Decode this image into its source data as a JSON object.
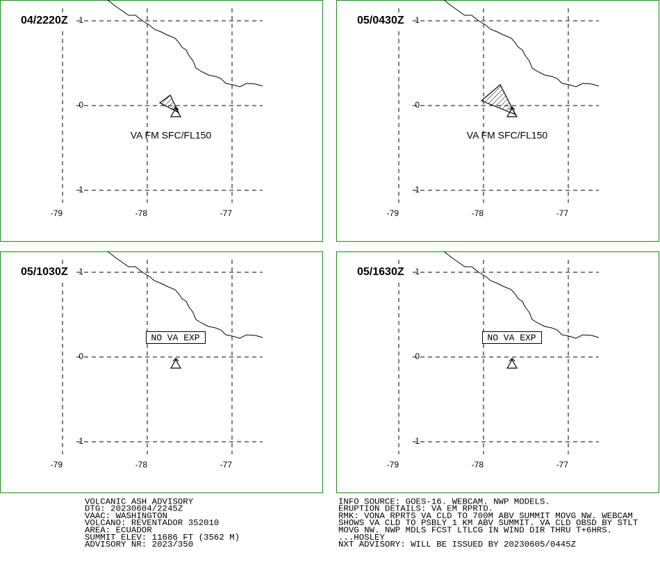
{
  "panels": [
    {
      "time": "04/2220Z",
      "va_label": "VA FM SFC/FL150"
    },
    {
      "time": "05/0430Z",
      "va_label": "VA FM SFC/FL150"
    },
    {
      "time": "05/1030Z",
      "no_va_label": "NO VA EXP"
    },
    {
      "time": "05/1630Z",
      "no_va_label": "NO VA EXP"
    }
  ],
  "lat_labels": [
    1,
    0,
    -1
  ],
  "lon_labels": [
    -79,
    -78,
    -77
  ],
  "info_left": [
    "VOLCANIC ASH ADVISORY",
    "DTG: 20230604/2245Z",
    "VAAC: WASHINGTON",
    "VOLCANO: REVENTADOR 352010",
    "AREA: ECUADOR",
    "SUMMIT ELEV: 11686 FT (3562 M)",
    "ADVISORY NR: 2023/350"
  ],
  "info_right": [
    "INFO SOURCE: GOES-16. WEBCAM. NWP MODELS.",
    "ERUPTION DETAILS: VA EM RPRTD.",
    "RMK: VONA RPRTS VA CLD TO 700M ABV SUMMIT MOVG NW. WEBCAM",
    "SHOWS VA CLD TO PSBLY 1 KM ABV SUMMIT. VA CLD OBSD BY STLT",
    "MOVG NW. NWP MDLS FCST LTLCG IN WIND DIR THRU T+6HRS.",
    "...HOSLEY",
    "NXT ADVISORY: WILL BE ISSUED BY 20230605/0445Z"
  ]
}
